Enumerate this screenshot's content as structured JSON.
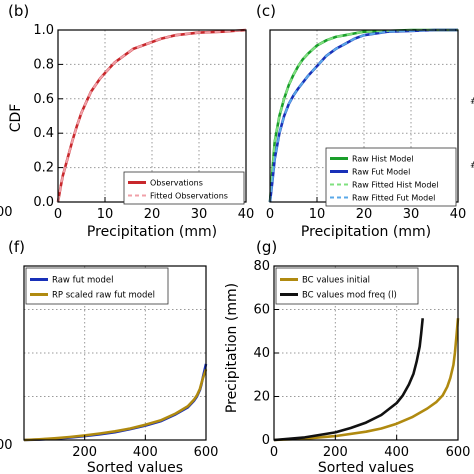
{
  "chart_data": [
    {
      "panel": "(b)",
      "type": "line",
      "xlabel": "Precipitation (mm)",
      "ylabel": "CDF",
      "xlim": [
        0,
        40
      ],
      "ylim": [
        0,
        1.0
      ],
      "xticks": [
        "0",
        "10",
        "20",
        "30",
        "40"
      ],
      "yticks": [
        "0.0",
        "0.2",
        "0.4",
        "0.6",
        "0.8",
        "1.0"
      ],
      "grid": true,
      "legend_position": "bottom-right",
      "series": [
        {
          "name": "Observations",
          "color": "#c8282c",
          "style": "solid",
          "x": [
            0,
            0.5,
            1,
            2,
            3,
            4,
            5,
            6,
            7,
            8,
            9,
            10,
            12,
            14,
            16,
            18,
            20,
            22,
            25,
            30,
            35,
            40
          ],
          "y": [
            0.0,
            0.08,
            0.15,
            0.25,
            0.35,
            0.44,
            0.52,
            0.58,
            0.64,
            0.68,
            0.72,
            0.75,
            0.81,
            0.85,
            0.89,
            0.91,
            0.93,
            0.95,
            0.97,
            0.985,
            0.99,
            1.0
          ]
        },
        {
          "name": "Fitted Observations",
          "color": "#f0a0a8",
          "style": "dashed",
          "x": [
            0,
            0.5,
            1,
            2,
            3,
            4,
            5,
            6,
            7,
            8,
            9,
            10,
            12,
            14,
            16,
            18,
            20,
            22,
            25,
            30,
            35,
            40
          ],
          "y": [
            0.0,
            0.08,
            0.15,
            0.25,
            0.35,
            0.44,
            0.52,
            0.58,
            0.64,
            0.68,
            0.72,
            0.75,
            0.81,
            0.85,
            0.89,
            0.91,
            0.93,
            0.95,
            0.97,
            0.985,
            0.99,
            1.0
          ]
        }
      ]
    },
    {
      "panel": "(c)",
      "type": "line",
      "xlabel": "Precipitation (mm)",
      "ylabel": "",
      "xlim": [
        0,
        40
      ],
      "ylim": [
        0,
        1.0
      ],
      "xticks": [
        "0",
        "10",
        "20",
        "30",
        "40"
      ],
      "grid": true,
      "legend_position": "bottom-right",
      "series": [
        {
          "name": "Raw Hist Model",
          "color": "#1a9e2a",
          "style": "solid",
          "x": [
            0,
            0.5,
            1,
            2,
            3,
            4,
            5,
            6,
            7,
            8,
            10,
            12,
            14,
            16,
            18,
            20,
            25,
            30,
            40
          ],
          "y": [
            0.0,
            0.18,
            0.35,
            0.5,
            0.6,
            0.68,
            0.74,
            0.79,
            0.83,
            0.86,
            0.91,
            0.94,
            0.96,
            0.97,
            0.98,
            0.99,
            0.995,
            1.0,
            1.0
          ]
        },
        {
          "name": "Raw Fut Model",
          "color": "#1830b8",
          "style": "solid",
          "x": [
            0,
            0.5,
            1,
            2,
            3,
            4,
            5,
            6,
            8,
            10,
            12,
            14,
            16,
            18,
            20,
            25,
            30,
            35,
            40
          ],
          "y": [
            0.0,
            0.12,
            0.25,
            0.4,
            0.5,
            0.57,
            0.62,
            0.66,
            0.73,
            0.79,
            0.85,
            0.89,
            0.92,
            0.95,
            0.97,
            0.99,
            0.995,
            1.0,
            1.0
          ]
        },
        {
          "name": "Raw Fitted Hist Model",
          "color": "#7fe07f",
          "style": "dashed",
          "x": [
            0,
            0.5,
            1,
            2,
            3,
            4,
            5,
            6,
            7,
            8,
            10,
            12,
            14,
            16,
            18,
            20,
            25,
            30,
            40
          ],
          "y": [
            0.0,
            0.18,
            0.35,
            0.5,
            0.6,
            0.68,
            0.74,
            0.79,
            0.83,
            0.86,
            0.91,
            0.94,
            0.96,
            0.97,
            0.98,
            0.99,
            0.995,
            1.0,
            1.0
          ]
        },
        {
          "name": "Raw Fitted Fut Model",
          "color": "#5aa8e8",
          "style": "dashed",
          "x": [
            0,
            0.5,
            1,
            2,
            3,
            4,
            5,
            6,
            8,
            10,
            12,
            14,
            16,
            18,
            20,
            25,
            30,
            35,
            40
          ],
          "y": [
            0.0,
            0.12,
            0.25,
            0.4,
            0.5,
            0.57,
            0.62,
            0.66,
            0.73,
            0.79,
            0.85,
            0.89,
            0.92,
            0.95,
            0.97,
            0.99,
            0.995,
            1.0,
            1.0
          ]
        }
      ]
    },
    {
      "panel": "(f)",
      "type": "line",
      "xlabel": "Sorted values",
      "ylabel": "",
      "xlim": [
        0,
        600
      ],
      "ylim": [
        0,
        80
      ],
      "xticks": [
        "200",
        "400",
        "600"
      ],
      "grid": true,
      "legend_position": "top-left",
      "series": [
        {
          "name": "Raw fut model",
          "color": "#1830b8",
          "style": "solid",
          "x": [
            0,
            50,
            100,
            150,
            200,
            250,
            300,
            350,
            400,
            450,
            500,
            540,
            560,
            570,
            580,
            585,
            590,
            595,
            600
          ],
          "y": [
            0.0,
            0.2,
            0.6,
            1.1,
            1.8,
            2.6,
            3.6,
            5.0,
            6.6,
            8.6,
            11.8,
            15.0,
            18.0,
            20.0,
            23.0,
            25.5,
            29.0,
            32.0,
            35.0
          ]
        },
        {
          "name": "RP scaled raw fut model",
          "color": "#b08a10",
          "style": "solid",
          "x": [
            0,
            50,
            100,
            150,
            200,
            250,
            300,
            350,
            400,
            450,
            500,
            540,
            560,
            570,
            580,
            585,
            590,
            595,
            600
          ],
          "y": [
            0.0,
            0.3,
            0.8,
            1.4,
            2.1,
            3.0,
            4.0,
            5.3,
            7.0,
            9.0,
            12.2,
            15.5,
            18.5,
            20.5,
            23.5,
            26.0,
            28.5,
            30.5,
            32.5
          ]
        }
      ]
    },
    {
      "panel": "(g)",
      "type": "line",
      "xlabel": "Sorted values",
      "ylabel": "Precipitation (mm)",
      "xlim": [
        0,
        600
      ],
      "ylim": [
        0,
        80
      ],
      "xticks": [
        "0",
        "200",
        "400",
        "600"
      ],
      "yticks": [
        "0",
        "20",
        "40",
        "60",
        "80"
      ],
      "grid": true,
      "legend_position": "top-left",
      "series": [
        {
          "name": "BC values initial",
          "color": "#b08a10",
          "style": "solid",
          "x": [
            0,
            100,
            200,
            300,
            350,
            400,
            450,
            500,
            530,
            550,
            565,
            575,
            585,
            590,
            595,
            600
          ],
          "y": [
            0.0,
            0.6,
            1.8,
            3.8,
            5.3,
            7.5,
            10.5,
            14.5,
            17.5,
            20.5,
            24.5,
            28.5,
            34.5,
            40.0,
            48.0,
            56.0
          ]
        },
        {
          "name": "BC values mod freq (l)",
          "color": "#111111",
          "style": "solid",
          "x": [
            0,
            100,
            200,
            250,
            300,
            350,
            400,
            420,
            440,
            455,
            465,
            475,
            480,
            485
          ],
          "y": [
            0.0,
            1.2,
            3.5,
            5.5,
            8.0,
            11.5,
            17.0,
            20.5,
            25.5,
            30.5,
            36.0,
            43.0,
            49.0,
            56.0
          ]
        }
      ]
    }
  ],
  "panel_labels": {
    "b": "(b)",
    "c": "(c)",
    "f": "(f)",
    "g": "(g)"
  },
  "edge_text": {
    "left_top": "00",
    "left_bottom": "00",
    "right_marks": "#"
  }
}
